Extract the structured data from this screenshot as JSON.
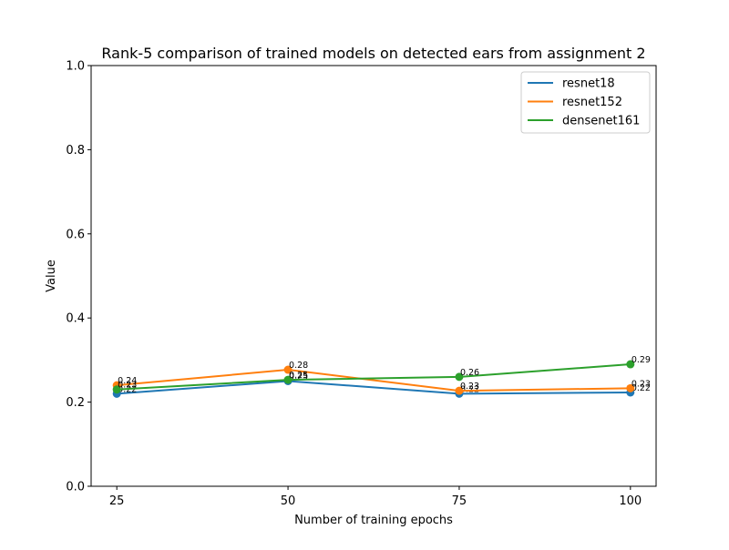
{
  "chart_data": {
    "type": "line",
    "title": "Rank-5 comparison of trained models on detected ears from assignment 2",
    "xlabel": "Number of training epochs",
    "ylabel": "Value",
    "x": [
      25,
      50,
      75,
      100
    ],
    "ylim": [
      0,
      1
    ],
    "yticks": [
      0.0,
      0.2,
      0.4,
      0.6,
      0.8,
      1.0
    ],
    "ytick_labels": [
      "0.0",
      "0.2",
      "0.4",
      "0.6",
      "0.8",
      "1.0"
    ],
    "xtick_labels": [
      "25",
      "50",
      "75",
      "100"
    ],
    "grid": false,
    "legend": "top-right",
    "series": [
      {
        "name": "resnet18",
        "color": "#1f77b4",
        "values": [
          0.22,
          0.25,
          0.22,
          0.223
        ],
        "labels": [
          "0.22",
          "0.25",
          "0.22",
          "0.22"
        ]
      },
      {
        "name": "resnet152",
        "color": "#ff7f0e",
        "values": [
          0.24,
          0.277,
          0.227,
          0.233
        ],
        "labels": [
          "0.24",
          "0.28",
          "0.23",
          "0.23"
        ]
      },
      {
        "name": "densenet161",
        "color": "#2ca02c",
        "values": [
          0.23,
          0.253,
          0.26,
          0.29
        ],
        "labels": [
          "0.23",
          "0.25",
          "0.26",
          "0.29"
        ]
      }
    ]
  }
}
